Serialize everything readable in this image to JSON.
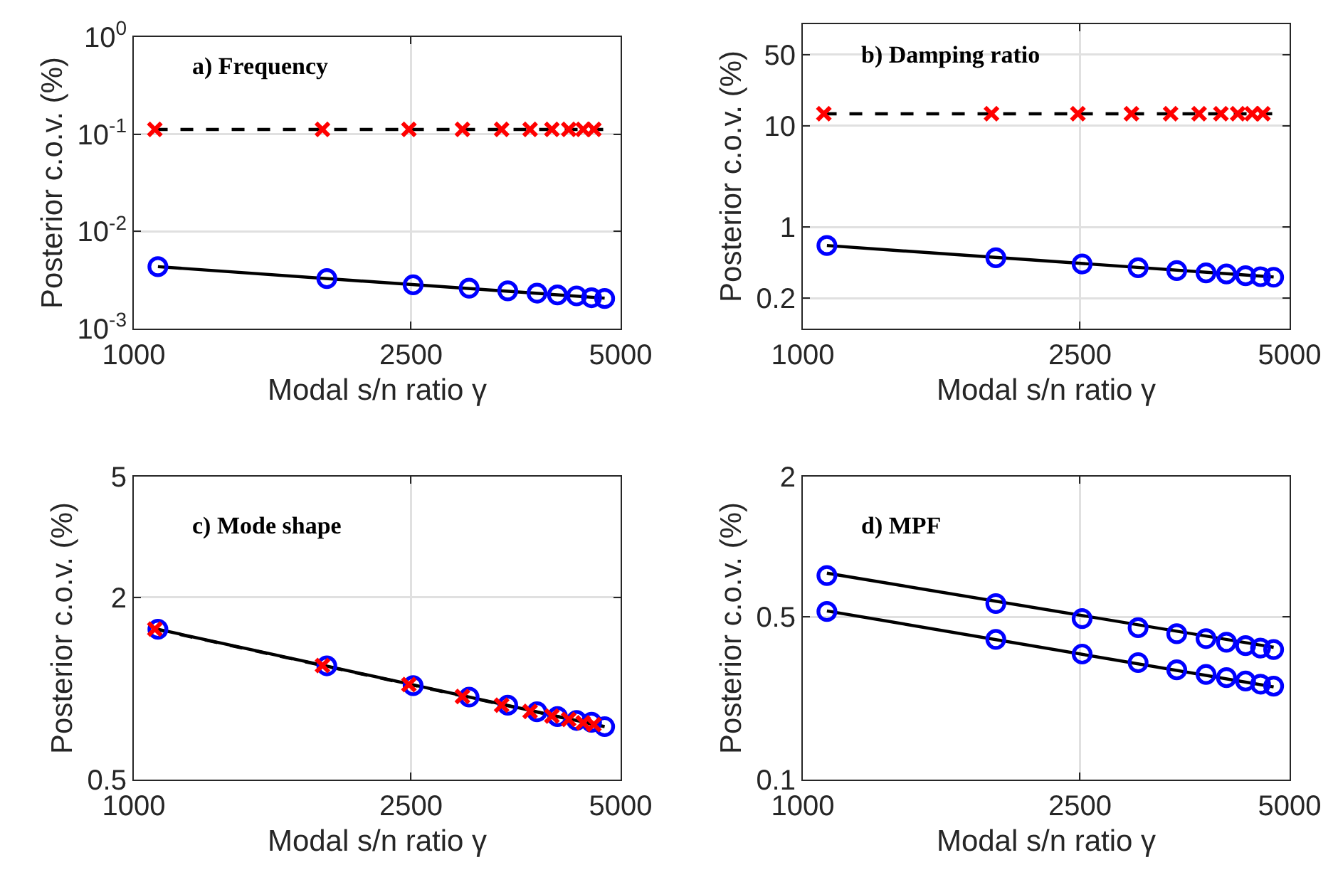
{
  "chart_data": [
    {
      "type": "line",
      "xlabel": "Modal s/n ratio γ",
      "ylabel": "Posterior c.o.v. (%)",
      "annotations": [
        "a) Frequency"
      ],
      "log": "xy",
      "grid": true,
      "xlim": [
        1000,
        5000
      ],
      "xticks": [
        1000,
        2500,
        5000
      ],
      "ylim": [
        0.001,
        1
      ],
      "yticks": [
        {
          "value": 0.001,
          "label": "10$^{-3}$"
        },
        {
          "value": 0.01,
          "label": "10$^{-2}$"
        },
        {
          "value": 0.1,
          "label": "10$^{-1}$"
        },
        {
          "value": 1,
          "label": "10$^{0}$"
        }
      ],
      "series": [
        {
          "type": "line",
          "color": "#000000",
          "line_style": "dashed",
          "x": [
            1072,
            4743
          ],
          "values": [
            0.112,
            0.112
          ]
        },
        {
          "type": "line",
          "color": "#000000",
          "line_style": "solid",
          "x": [
            1083,
            4743
          ],
          "values": [
            0.00434,
            0.00206
          ]
        },
        {
          "type": "scatter",
          "color": "#0000ff",
          "marker": "circle",
          "x": [
            1083,
            1893,
            2518,
            3030,
            3443,
            3793,
            4058,
            4323,
            4542,
            4743
          ],
          "values": [
            0.00434,
            0.00327,
            0.00282,
            0.00261,
            0.00245,
            0.00232,
            0.00222,
            0.00217,
            0.00208,
            0.00204
          ]
        },
        {
          "type": "scatter",
          "color": "#ff0000",
          "marker": "cross",
          "x": [
            1072,
            1866,
            2483,
            2964,
            3374,
            3707,
            3984,
            4212,
            4418,
            4577
          ],
          "values": [
            0.112,
            0.112,
            0.112,
            0.112,
            0.112,
            0.112,
            0.112,
            0.112,
            0.112,
            0.112
          ]
        }
      ]
    },
    {
      "type": "line",
      "xlabel": "Modal s/n ratio γ",
      "ylabel": "Posterior c.o.v. (%)",
      "annotations": [
        "b) Damping ratio"
      ],
      "log": "xy",
      "grid": true,
      "xlim": [
        1000,
        5000
      ],
      "xticks": [
        1000,
        2500,
        5000
      ],
      "ylim": [
        0.1,
        100
      ],
      "yticks": [
        0.2,
        1,
        10,
        50
      ],
      "series": [
        {
          "type": "line",
          "color": "#000000",
          "line_style": "dashed",
          "x": [
            1072,
            4743
          ],
          "values": [
            13.1,
            13.1
          ]
        },
        {
          "type": "line",
          "color": "#000000",
          "line_style": "solid",
          "x": [
            1083,
            4743
          ],
          "values": [
            0.659,
            0.323
          ]
        },
        {
          "type": "scatter",
          "color": "#0000ff",
          "marker": "circle",
          "x": [
            1083,
            1893,
            2518,
            3030,
            3443,
            3793,
            4058,
            4323,
            4542,
            4743
          ],
          "values": [
            0.659,
            0.499,
            0.434,
            0.398,
            0.373,
            0.354,
            0.346,
            0.332,
            0.325,
            0.321
          ]
        },
        {
          "type": "scatter",
          "color": "#ff0000",
          "marker": "cross",
          "x": [
            1072,
            1866,
            2483,
            2964,
            3374,
            3707,
            3984,
            4212,
            4418,
            4577
          ],
          "values": [
            13.1,
            13.1,
            13.1,
            13.1,
            13.1,
            13.1,
            13.1,
            13.1,
            13.1,
            13.1
          ]
        }
      ]
    },
    {
      "type": "line",
      "xlabel": "Modal s/n ratio γ",
      "ylabel": "Posterior c.o.v. (%)",
      "annotations": [
        "c) Mode shape"
      ],
      "log": "xy",
      "grid": true,
      "xlim": [
        1000,
        5000
      ],
      "xticks": [
        1000,
        2500,
        5000
      ],
      "ylim": [
        0.5,
        5
      ],
      "yticks": [
        0.5,
        2,
        5
      ],
      "series": [
        {
          "type": "line",
          "color": "#000000",
          "line_style": "dashed",
          "x": [
            1072,
            4577
          ],
          "values": [
            1.57,
            0.76
          ]
        },
        {
          "type": "line",
          "color": "#000000",
          "line_style": "solid",
          "x": [
            1083,
            4743
          ],
          "values": [
            1.567,
            0.748
          ]
        },
        {
          "type": "scatter",
          "color": "#0000ff",
          "marker": "circle",
          "x": [
            1083,
            1893,
            2518,
            3030,
            3443,
            3793,
            4058,
            4323,
            4542,
            4743
          ],
          "values": [
            1.567,
            1.187,
            1.021,
            0.936,
            0.88,
            0.837,
            0.807,
            0.784,
            0.773,
            0.748
          ]
        },
        {
          "type": "scatter",
          "color": "#ff0000",
          "marker": "cross",
          "x": [
            1072,
            1866,
            2483,
            2964,
            3374,
            3707,
            3984,
            4212,
            4418,
            4577
          ],
          "values": [
            1.57,
            1.19,
            1.03,
            0.94,
            0.88,
            0.84,
            0.81,
            0.79,
            0.77,
            0.76
          ]
        }
      ]
    },
    {
      "type": "line",
      "xlabel": "Modal s/n ratio γ",
      "ylabel": "Posterior c.o.v. (%)",
      "annotations": [
        "d) MPF"
      ],
      "log": "xy",
      "grid": true,
      "xlim": [
        1000,
        5000
      ],
      "xticks": [
        1000,
        2500,
        5000
      ],
      "ylim": [
        0.1,
        2
      ],
      "yticks": [
        0.1,
        0.5,
        2
      ],
      "series": [
        {
          "type": "line",
          "color": "#000000",
          "line_style": "solid",
          "x": [
            1083,
            4743
          ],
          "values": [
            0.77,
            0.37
          ]
        },
        {
          "type": "line",
          "color": "#000000",
          "line_style": "solid",
          "x": [
            1083,
            4743
          ],
          "values": [
            0.53,
            0.25
          ]
        },
        {
          "type": "scatter",
          "color": "#0000ff",
          "marker": "circle",
          "x": [
            1083,
            1893,
            2518,
            3030,
            3443,
            3793,
            4058,
            4323,
            4542,
            4743
          ],
          "values": [
            0.752,
            0.57,
            0.491,
            0.449,
            0.423,
            0.403,
            0.389,
            0.376,
            0.367,
            0.362
          ]
        },
        {
          "type": "scatter",
          "color": "#0000ff",
          "marker": "circle",
          "x": [
            1083,
            1893,
            2518,
            3030,
            3443,
            3793,
            4058,
            4323,
            4542,
            4743
          ],
          "values": [
            0.527,
            0.4,
            0.346,
            0.318,
            0.296,
            0.283,
            0.274,
            0.265,
            0.257,
            0.252
          ]
        }
      ]
    }
  ]
}
